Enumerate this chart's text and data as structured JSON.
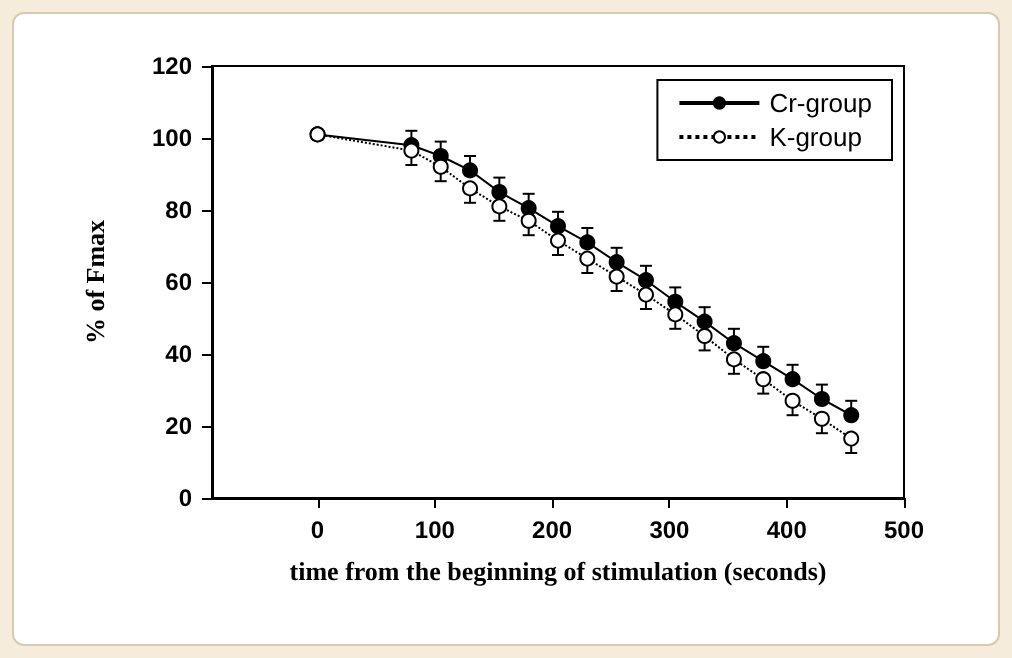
{
  "chart_data": {
    "type": "line",
    "xlabel": "time from the beginning of stimulation (seconds)",
    "ylabel": "% of Fmax",
    "xlim": [
      -90,
      500
    ],
    "xticks": [
      0,
      100,
      200,
      300,
      400,
      500
    ],
    "ylim": [
      0,
      120
    ],
    "yticks": [
      0,
      20,
      40,
      60,
      80,
      100,
      120
    ],
    "grid": false,
    "legend": "top right",
    "marker": "circle",
    "series": [
      {
        "name": "Cr-group",
        "color": "#000000",
        "line_style": "solid",
        "x": [
          0,
          80,
          105,
          130,
          155,
          180,
          205,
          230,
          255,
          280,
          305,
          330,
          355,
          380,
          405,
          430,
          455
        ],
        "values": [
          101,
          98,
          95,
          91,
          85,
          80.5,
          75.5,
          71,
          65.5,
          60.5,
          54.5,
          49,
          43,
          38,
          33,
          27.5,
          23
        ],
        "errors": [
          null,
          [
            98,
            102
          ],
          [
            95,
            99
          ],
          [
            91,
            95
          ],
          [
            85,
            89
          ],
          [
            80.5,
            84.5
          ],
          [
            75.5,
            79.5
          ],
          [
            71,
            75
          ],
          [
            65.5,
            69.5
          ],
          [
            60.5,
            64.5
          ],
          [
            54.5,
            58.5
          ],
          [
            49,
            53
          ],
          [
            43,
            47
          ],
          [
            38,
            42
          ],
          [
            33,
            37
          ],
          [
            27.5,
            31.5
          ],
          [
            23,
            27
          ]
        ]
      },
      {
        "name": "K-group",
        "color": "#000000",
        "line_style": "dotted",
        "x": [
          0,
          80,
          105,
          130,
          155,
          180,
          205,
          230,
          255,
          280,
          305,
          330,
          355,
          380,
          405,
          430,
          455
        ],
        "values": [
          101,
          96.5,
          92,
          86,
          81,
          77,
          71.5,
          66.5,
          61.5,
          56.5,
          51,
          45,
          38.5,
          33,
          27,
          22,
          16.5
        ],
        "errors": [
          null,
          [
            92.5,
            96.5
          ],
          [
            88,
            92
          ],
          [
            82,
            86
          ],
          [
            77,
            81
          ],
          [
            73,
            77
          ],
          [
            67.5,
            71.5
          ],
          [
            62.5,
            66.5
          ],
          [
            57.5,
            61.5
          ],
          [
            52.5,
            56.5
          ],
          [
            47,
            51
          ],
          [
            41,
            45
          ],
          [
            34.5,
            38.5
          ],
          [
            29,
            33
          ],
          [
            23,
            27
          ],
          [
            18,
            22
          ],
          [
            12.5,
            16.5
          ]
        ]
      }
    ]
  }
}
